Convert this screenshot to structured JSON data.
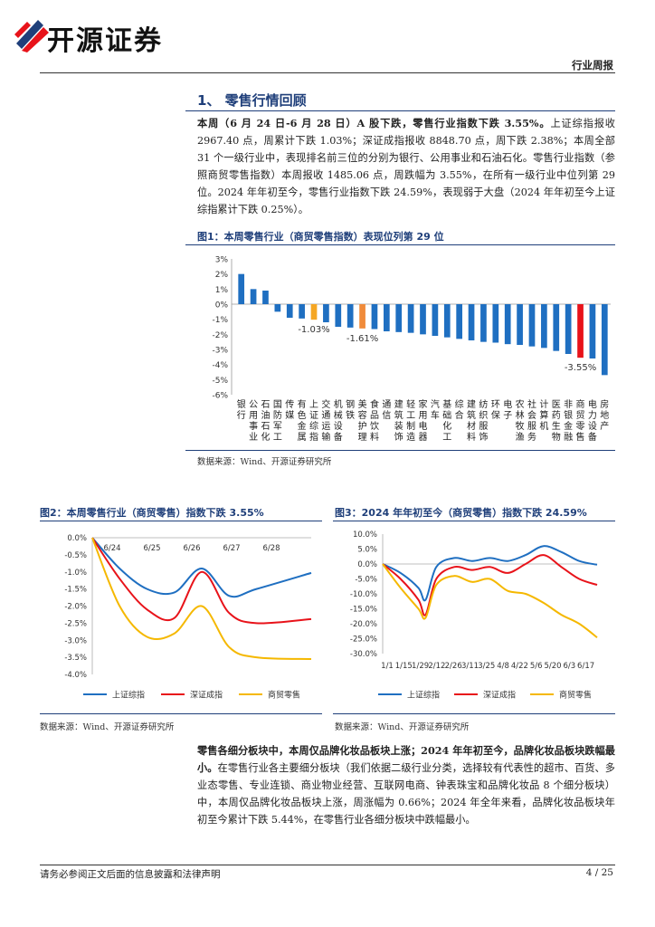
{
  "header": {
    "brand": "开源证券",
    "doc_type": "行业周报"
  },
  "section": {
    "title": "1、 零售行情回顾"
  },
  "para1": {
    "bold": "本周（6 月 24 日-6 月 28 日）A 股下跌，零售行业指数下跌 3.55%。",
    "rest": "上证综指报收 2967.40 点，周累计下跌 1.03%；深证成指报收 8848.70 点，周下跌 2.38%；本周全部 31 个一级行业中，表现排名前三位的分别为银行、公用事业和石油石化。零售行业指数（参照商贸零售指数）本周报收 1485.06 点，周跌幅为 3.55%，在所有一级行业中位列第 29 位。2024 年年初至今，零售行业指数下跌 24.59%，表现弱于大盘（2024 年年初至今上证综指累计下跌 0.25%）。"
  },
  "fig1": {
    "title": "图1：本周零售行业（商贸零售指数）表现位列第 29 位",
    "source": "数据来源：Wind、开源证券研究所"
  },
  "fig2": {
    "title": "图2：本周零售行业（商贸零售）指数下跌 3.55%",
    "source": "数据来源：Wind、开源证券研究所"
  },
  "fig3": {
    "title": "图3：2024 年年初至今（商贸零售）指数下跌 24.59%",
    "source": "数据来源：Wind、开源证券研究所"
  },
  "para2": {
    "bold": "零售各细分板块中，本周仅品牌化妆品板块上涨；2024 年年初至今，品牌化妆品板块跌幅最小。",
    "rest": "在零售行业各主要细分板块（我们依据二级行业分类，选择较有代表性的超市、百货、多业态零售、专业连锁、商业物业经营、互联网电商、钟表珠宝和品牌化妆品 8 个细分板块）中，本周仅品牌化妆品板块上涨，周涨幅为 0.66%；2024 年全年来看，品牌化妆品板块年初至今累计下跌 5.44%，在零售行业各细分板块中跌幅最小。"
  },
  "footer": {
    "disclaimer": "请务必参阅正文后面的信息披露和法律声明",
    "page": "4 / 25"
  },
  "chart_data": [
    {
      "type": "bar",
      "title": "图1：本周零售行业（商贸零售指数）表现位列第 29 位",
      "categories": [
        "银行",
        "公用事业",
        "石油石化",
        "国防军工",
        "传媒",
        "有色金属",
        "上证综指",
        "交通运输",
        "机械设备",
        "钢铁",
        "美容护理",
        "食品饮料",
        "通信",
        "建筑装饰",
        "轻工制造",
        "家用电器",
        "汽车",
        "基础化工",
        "综合",
        "建筑材料",
        "纺织服饰",
        "环保",
        "电子",
        "农林牧渔",
        "社会服务",
        "计算机",
        "医药生物",
        "非银金融",
        "商贸零售",
        "电力设备",
        "房地产"
      ],
      "values": [
        2.0,
        1.0,
        0.9,
        -0.5,
        -0.9,
        -0.95,
        -1.03,
        -1.2,
        -1.5,
        -1.55,
        -1.61,
        -1.65,
        -1.8,
        -1.85,
        -1.9,
        -2.0,
        -2.1,
        -2.2,
        -2.3,
        -2.4,
        -2.5,
        -2.55,
        -2.65,
        -2.7,
        -2.8,
        -2.9,
        -3.1,
        -3.3,
        -3.55,
        -3.6,
        -4.7
      ],
      "highlight": {
        "上证综指": "#f5a623",
        "美容护理": "#f08b3a",
        "商贸零售": "#e8131a"
      },
      "data_labels": {
        "上证综指": "-1.03%",
        "美容护理": "-1.61%",
        "商贸零售": "-3.55%"
      },
      "y_ticks": [
        "3%",
        "2%",
        "1%",
        "0%",
        "-1%",
        "-2%",
        "-3%",
        "-4%",
        "-5%",
        "-6%"
      ],
      "ylim": [
        -6,
        3
      ],
      "bar_color": "#1f6fc1"
    },
    {
      "type": "line",
      "title": "图2：本周零售行业（商贸零售）指数下跌 3.55%",
      "x_ticks": [
        "6/24",
        "6/25",
        "6/26",
        "6/27",
        "6/28"
      ],
      "y_ticks": [
        "0.0%",
        "-0.5%",
        "-1.0%",
        "-1.5%",
        "-2.0%",
        "-2.5%",
        "-3.0%",
        "-3.5%",
        "-4.0%"
      ],
      "ylim": [
        -4.0,
        0.0
      ],
      "series": [
        {
          "name": "上证综指",
          "color": "#1f6fc1",
          "points": [
            [
              0,
              0
            ],
            [
              0.5,
              -0.9
            ],
            [
              1,
              -1.5
            ],
            [
              1.5,
              -1.6
            ],
            [
              2,
              -0.9
            ],
            [
              2.5,
              -1.7
            ],
            [
              3,
              -1.5
            ],
            [
              4,
              -1.03
            ]
          ]
        },
        {
          "name": "深证成指",
          "color": "#e8131a",
          "points": [
            [
              0,
              0
            ],
            [
              0.5,
              -1.2
            ],
            [
              1,
              -2.1
            ],
            [
              1.5,
              -2.35
            ],
            [
              2,
              -1.0
            ],
            [
              2.5,
              -2.2
            ],
            [
              3,
              -2.5
            ],
            [
              4,
              -2.38
            ]
          ]
        },
        {
          "name": "商贸零售",
          "color": "#f5b800",
          "points": [
            [
              0,
              0
            ],
            [
              0.5,
              -2.0
            ],
            [
              1,
              -2.9
            ],
            [
              1.5,
              -2.8
            ],
            [
              2,
              -2.0
            ],
            [
              2.5,
              -3.2
            ],
            [
              3,
              -3.5
            ],
            [
              4,
              -3.55
            ]
          ]
        }
      ]
    },
    {
      "type": "line",
      "title": "图3：2024 年年初至今（商贸零售）指数下跌 24.59%",
      "x_ticks": [
        "1/1",
        "1/15",
        "1/29",
        "2/12",
        "2/26",
        "3/11",
        "3/25",
        "4/8",
        "4/22",
        "5/6",
        "5/20",
        "6/3",
        "6/17"
      ],
      "y_ticks": [
        "10.0%",
        "5.0%",
        "0.0%",
        "-5.0%",
        "-10.0%",
        "-15.0%",
        "-20.0%",
        "-25.0%",
        "-30.0%"
      ],
      "ylim": [
        -30,
        10
      ],
      "series": [
        {
          "name": "上证综指",
          "color": "#1f6fc1",
          "points": [
            [
              0,
              0
            ],
            [
              1,
              -3
            ],
            [
              2,
              -8
            ],
            [
              2.4,
              -12
            ],
            [
              3,
              -1
            ],
            [
              4,
              2
            ],
            [
              5,
              1
            ],
            [
              6,
              2
            ],
            [
              7,
              1
            ],
            [
              8,
              3
            ],
            [
              9,
              6
            ],
            [
              10,
              4
            ],
            [
              11,
              1
            ],
            [
              12,
              -0.25
            ]
          ]
        },
        {
          "name": "深证成指",
          "color": "#e8131a",
          "points": [
            [
              0,
              0
            ],
            [
              1,
              -5
            ],
            [
              2,
              -12
            ],
            [
              2.4,
              -17
            ],
            [
              3,
              -5
            ],
            [
              4,
              -1
            ],
            [
              5,
              -2
            ],
            [
              6,
              -1
            ],
            [
              7,
              -3
            ],
            [
              8,
              0
            ],
            [
              9,
              3
            ],
            [
              10,
              -1
            ],
            [
              11,
              -5
            ],
            [
              12,
              -7
            ]
          ]
        },
        {
          "name": "商贸零售",
          "color": "#f5b800",
          "points": [
            [
              0,
              0
            ],
            [
              1,
              -8
            ],
            [
              2,
              -15
            ],
            [
              2.4,
              -18
            ],
            [
              3,
              -7
            ],
            [
              4,
              -4
            ],
            [
              5,
              -6
            ],
            [
              6,
              -5
            ],
            [
              7,
              -9
            ],
            [
              8,
              -10
            ],
            [
              9,
              -13
            ],
            [
              10,
              -17
            ],
            [
              11,
              -20
            ],
            [
              12,
              -24.59
            ]
          ]
        }
      ]
    }
  ]
}
